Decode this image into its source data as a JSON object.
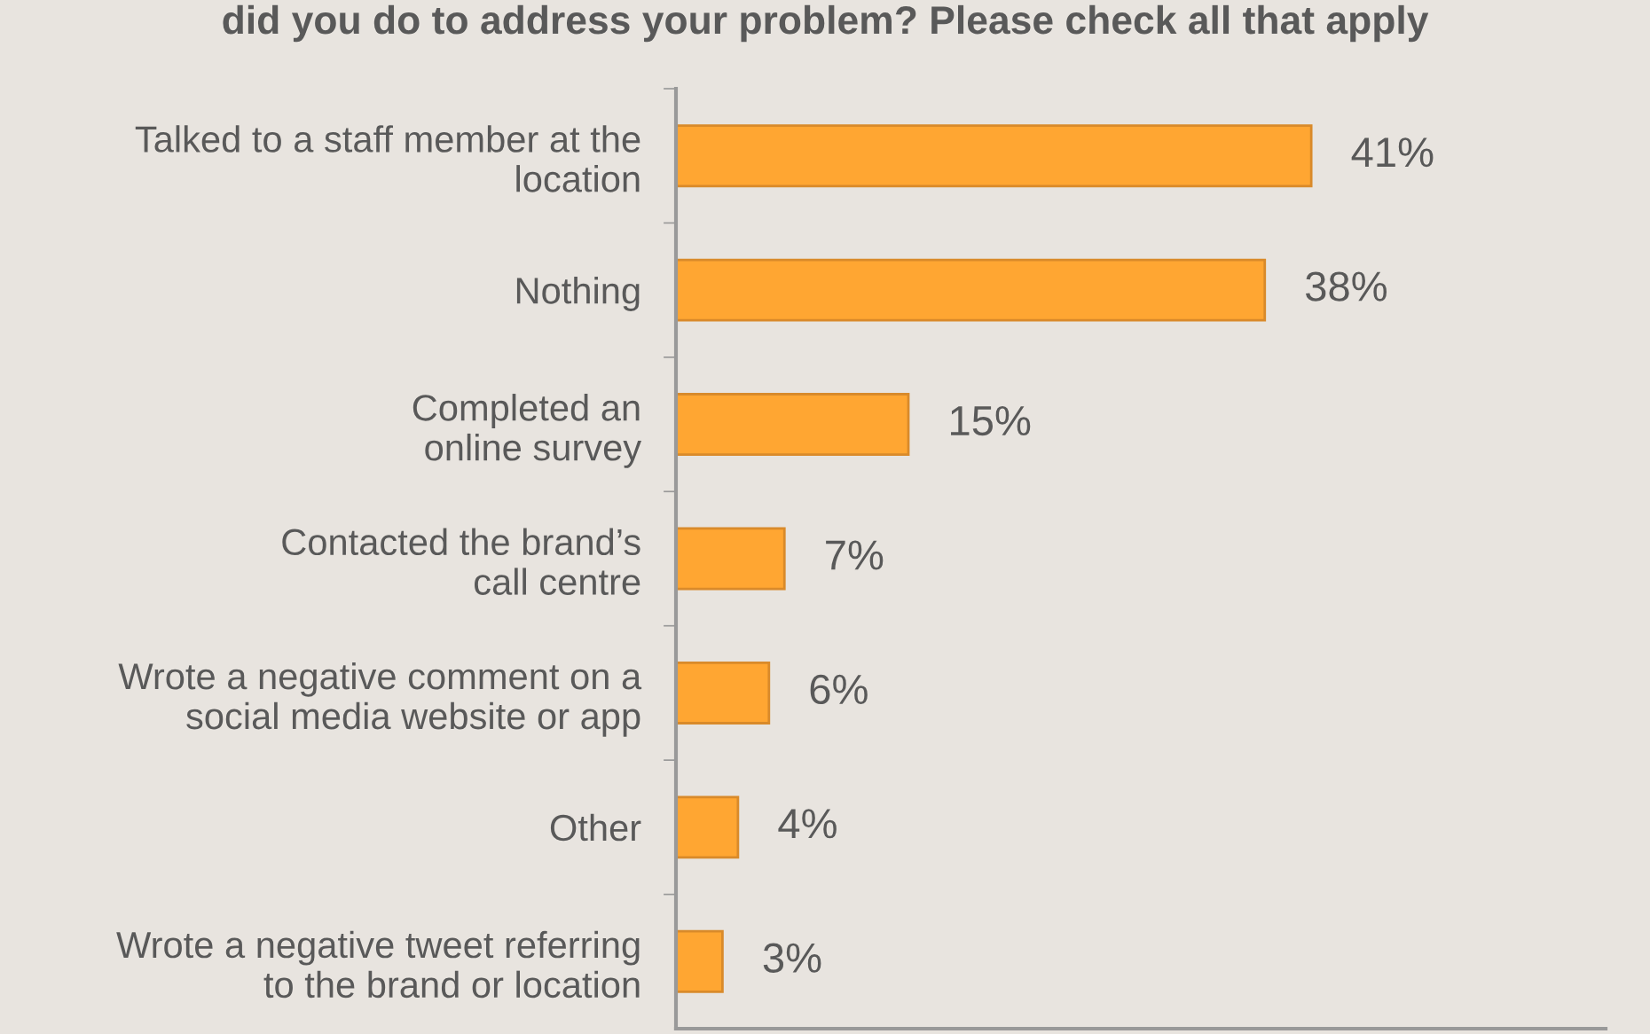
{
  "chart_data": {
    "type": "bar",
    "orientation": "horizontal",
    "title": "did you do to address your problem? Please check all that apply",
    "categories": [
      "Talked to a staff member at the\nlocation",
      "Nothing",
      "Completed an\nonline survey",
      "Contacted the brand’s\ncall centre",
      "Wrote a negative comment on a\nsocial media website or app",
      "Other",
      "Wrote a negative tweet referring\nto the brand or location"
    ],
    "values": [
      41,
      38,
      15,
      7,
      6,
      4,
      3
    ],
    "value_labels": [
      "41%",
      "38%",
      "15%",
      "7%",
      "6%",
      "4%",
      "3%"
    ],
    "color": "#ffa632",
    "xlim": [
      0,
      60
    ],
    "tick_labels": "y",
    "grid": false,
    "legend": false
  }
}
